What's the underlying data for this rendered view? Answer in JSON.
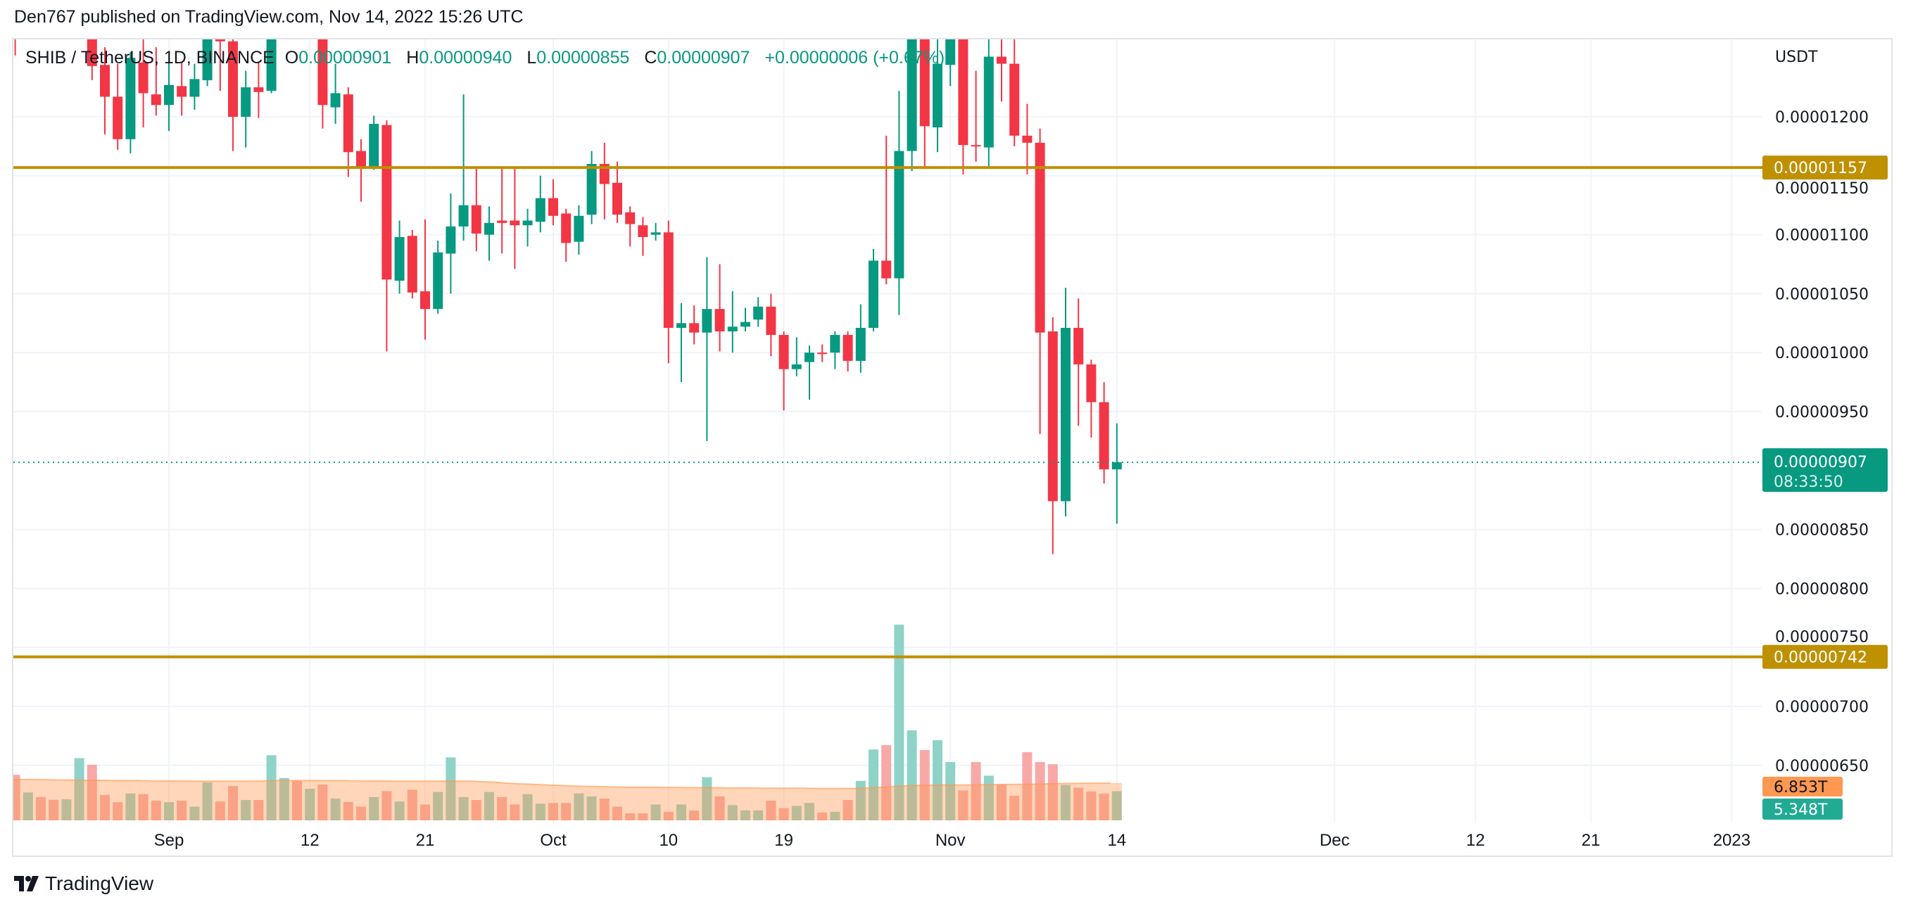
{
  "header": {
    "published": "Den767 published on TradingView.com, Nov 14, 2022 15:26 UTC"
  },
  "legend": {
    "symbol": "SHIB / TetherUS, 1D, BINANCE",
    "o_label": "O",
    "o": "0.00000901",
    "h_label": "H",
    "h": "0.00000940",
    "l_label": "L",
    "l": "0.00000855",
    "c_label": "C",
    "c": "0.00000907",
    "change": "+0.00000006 (+0.67%)"
  },
  "price_axis": {
    "currency": "USDT",
    "ticks": [
      "0.00001200",
      "0.00001150",
      "0.00001100",
      "0.00001050",
      "0.00001000",
      "0.00000950",
      "0.00000850",
      "0.00000800",
      "0.00000750",
      "0.00000700",
      "0.00000650"
    ]
  },
  "levels": [
    {
      "value": "0.00001157"
    },
    {
      "value": "0.00000742"
    }
  ],
  "last_price": {
    "value": "0.00000907",
    "countdown": "08:33:50"
  },
  "volume": {
    "ma_label": "6.853T",
    "last_label": "5.348T"
  },
  "time_axis": {
    "labels": [
      {
        "label": "Sep",
        "date": "2022-09-01"
      },
      {
        "label": "12",
        "date": "2022-09-12"
      },
      {
        "label": "21",
        "date": "2022-09-21"
      },
      {
        "label": "Oct",
        "date": "2022-10-01"
      },
      {
        "label": "10",
        "date": "2022-10-10"
      },
      {
        "label": "19",
        "date": "2022-10-19"
      },
      {
        "label": "Nov",
        "date": "2022-11-01"
      },
      {
        "label": "14",
        "date": "2022-11-14"
      },
      {
        "label": "Dec",
        "date": "2022-12-01"
      },
      {
        "label": "12",
        "date": "2022-12-12"
      },
      {
        "label": "21",
        "date": "2022-12-21"
      },
      {
        "label": "2023",
        "date": "2023-01-01"
      }
    ]
  },
  "footer": {
    "logo_text": "TradingView"
  },
  "colors": {
    "up": "#089981",
    "down": "#F23645",
    "level": "#BF9000",
    "volume_up": "#8fd3c8",
    "volume_down": "#f7a9a8",
    "volume_ma": "#ff9850",
    "grid": "#f0f3fa"
  },
  "chart_data": {
    "type": "candlestick",
    "title": "SHIB / TetherUS, 1D, BINANCE",
    "ylabel": "USDT",
    "ylim": [
      6.35e-06,
      1.265e-05
    ],
    "grid": true,
    "dates": [
      "2022-08-20",
      "2022-08-21",
      "2022-08-22",
      "2022-08-23",
      "2022-08-24",
      "2022-08-25",
      "2022-08-26",
      "2022-08-27",
      "2022-08-28",
      "2022-08-29",
      "2022-08-30",
      "2022-08-31",
      "2022-09-01",
      "2022-09-02",
      "2022-09-03",
      "2022-09-04",
      "2022-09-05",
      "2022-09-06",
      "2022-09-07",
      "2022-09-08",
      "2022-09-09",
      "2022-09-10",
      "2022-09-11",
      "2022-09-12",
      "2022-09-13",
      "2022-09-14",
      "2022-09-15",
      "2022-09-16",
      "2022-09-17",
      "2022-09-18",
      "2022-09-19",
      "2022-09-20",
      "2022-09-21",
      "2022-09-22",
      "2022-09-23",
      "2022-09-24",
      "2022-09-25",
      "2022-09-26",
      "2022-09-27",
      "2022-09-28",
      "2022-09-29",
      "2022-09-30",
      "2022-10-01",
      "2022-10-02",
      "2022-10-03",
      "2022-10-04",
      "2022-10-05",
      "2022-10-06",
      "2022-10-07",
      "2022-10-08",
      "2022-10-09",
      "2022-10-10",
      "2022-10-11",
      "2022-10-12",
      "2022-10-13",
      "2022-10-14",
      "2022-10-15",
      "2022-10-16",
      "2022-10-17",
      "2022-10-18",
      "2022-10-19",
      "2022-10-20",
      "2022-10-21",
      "2022-10-22",
      "2022-10-23",
      "2022-10-24",
      "2022-10-25",
      "2022-10-26",
      "2022-10-27",
      "2022-10-28",
      "2022-10-29",
      "2022-10-30",
      "2022-10-31",
      "2022-11-01",
      "2022-11-02",
      "2022-11-03",
      "2022-11-04",
      "2022-11-05",
      "2022-11-06",
      "2022-11-07",
      "2022-11-08",
      "2022-11-09",
      "2022-11-10",
      "2022-11-11",
      "2022-11-12",
      "2022-11-13",
      "2022-11-14"
    ],
    "ohlc": [
      [
        1.33e-05,
        1.345e-05,
        1.252e-05,
        1.28e-05
      ],
      [
        1.28e-05,
        1.32e-05,
        1.272e-05,
        1.3e-05
      ],
      [
        1.3e-05,
        1.33e-05,
        1.28e-05,
        1.295e-05
      ],
      [
        1.295e-05,
        1.31e-05,
        1.278e-05,
        1.285e-05
      ],
      [
        1.285e-05,
        1.315e-05,
        1.276e-05,
        1.3e-05
      ],
      [
        1.3e-05,
        1.33e-05,
        1.285e-05,
        1.315e-05
      ],
      [
        1.315e-05,
        1.32e-05,
        1.231e-05,
        1.243e-05
      ],
      [
        1.244e-05,
        1.259e-05,
        1.185e-05,
        1.217e-05
      ],
      [
        1.217e-05,
        1.245e-05,
        1.172e-05,
        1.181e-05
      ],
      [
        1.181e-05,
        1.255e-05,
        1.169e-05,
        1.25e-05
      ],
      [
        1.246e-05,
        1.268e-05,
        1.191e-05,
        1.22e-05
      ],
      [
        1.219e-05,
        1.259e-05,
        1.201e-05,
        1.21e-05
      ],
      [
        1.21e-05,
        1.246e-05,
        1.188e-05,
        1.227e-05
      ],
      [
        1.226e-05,
        1.246e-05,
        1.201e-05,
        1.217e-05
      ],
      [
        1.217e-05,
        1.245e-05,
        1.206e-05,
        1.232e-05
      ],
      [
        1.231e-05,
        1.285e-05,
        1.226e-05,
        1.275e-05
      ],
      [
        1.27e-05,
        1.29e-05,
        1.222e-05,
        1.264e-05
      ],
      [
        1.264e-05,
        1.268e-05,
        1.171e-05,
        1.2e-05
      ],
      [
        1.2e-05,
        1.239e-05,
        1.174e-05,
        1.225e-05
      ],
      [
        1.225e-05,
        1.247e-05,
        1.199e-05,
        1.221e-05
      ],
      [
        1.222e-05,
        1.285e-05,
        1.22e-05,
        1.275e-05
      ],
      [
        1.275e-05,
        1.3e-05,
        1.27e-05,
        1.29e-05
      ],
      [
        1.29e-05,
        1.31e-05,
        1.266e-05,
        1.275e-05
      ],
      [
        1.275e-05,
        1.3e-05,
        1.268e-05,
        1.29e-05
      ],
      [
        1.29e-05,
        1.3e-05,
        1.19e-05,
        1.21e-05
      ],
      [
        1.208e-05,
        1.245e-05,
        1.194e-05,
        1.22e-05
      ],
      [
        1.219e-05,
        1.225e-05,
        1.149e-05,
        1.17e-05
      ],
      [
        1.171e-05,
        1.181e-05,
        1.128e-05,
        1.157e-05
      ],
      [
        1.157e-05,
        1.201e-05,
        1.155e-05,
        1.194e-05
      ],
      [
        1.193e-05,
        1.197e-05,
        1.001e-05,
        1.062e-05
      ],
      [
        1.061e-05,
        1.112e-05,
        1.05e-05,
        1.098e-05
      ],
      [
        1.099e-05,
        1.104e-05,
        1.046e-05,
        1.051e-05
      ],
      [
        1.052e-05,
        1.113e-05,
        1.011e-05,
        1.037e-05
      ],
      [
        1.037e-05,
        1.095e-05,
        1.033e-05,
        1.085e-05
      ],
      [
        1.084e-05,
        1.135e-05,
        1.05e-05,
        1.107e-05
      ],
      [
        1.107e-05,
        1.219e-05,
        1.095e-05,
        1.125e-05
      ],
      [
        1.125e-05,
        1.156e-05,
        1.086e-05,
        1.101e-05
      ],
      [
        1.1e-05,
        1.124e-05,
        1.078e-05,
        1.11e-05
      ],
      [
        1.112e-05,
        1.156e-05,
        1.084e-05,
        1.11e-05
      ],
      [
        1.112e-05,
        1.156e-05,
        1.071e-05,
        1.108e-05
      ],
      [
        1.108e-05,
        1.122e-05,
        1.09e-05,
        1.112e-05
      ],
      [
        1.111e-05,
        1.15e-05,
        1.102e-05,
        1.131e-05
      ],
      [
        1.131e-05,
        1.147e-05,
        1.108e-05,
        1.116e-05
      ],
      [
        1.118e-05,
        1.122e-05,
        1.077e-05,
        1.093e-05
      ],
      [
        1.094e-05,
        1.125e-05,
        1.083e-05,
        1.116e-05
      ],
      [
        1.117e-05,
        1.171e-05,
        1.109e-05,
        1.16e-05
      ],
      [
        1.16e-05,
        1.178e-05,
        1.113e-05,
        1.143e-05
      ],
      [
        1.144e-05,
        1.162e-05,
        1.11e-05,
        1.117e-05
      ],
      [
        1.119e-05,
        1.124e-05,
        1.09e-05,
        1.109e-05
      ],
      [
        1.108e-05,
        1.115e-05,
        1.082e-05,
        1.098e-05
      ],
      [
        1.1e-05,
        1.11e-05,
        1.095e-05,
        1.102e-05
      ],
      [
        1.102e-05,
        1.112e-05,
        9.91e-06,
        1.021e-05
      ],
      [
        1.021e-05,
        1.042e-05,
        9.75e-06,
        1.025e-05
      ],
      [
        1.025e-05,
        1.04e-05,
        1.007e-05,
        1.017e-05
      ],
      [
        1.017e-05,
        1.081e-05,
        9.25e-06,
        1.037e-05
      ],
      [
        1.037e-05,
        1.075e-05,
        1.001e-05,
        1.018e-05
      ],
      [
        1.018e-05,
        1.052e-05,
        1e-05,
        1.022e-05
      ],
      [
        1.022e-05,
        1.038e-05,
        1.018e-05,
        1.026e-05
      ],
      [
        1.028e-05,
        1.047e-05,
        1.022e-05,
        1.039e-05
      ],
      [
        1.039e-05,
        1.05e-05,
        9.97e-06,
        1.015e-05
      ],
      [
        1.015e-05,
        1.018e-05,
        9.51e-06,
        9.86e-06
      ],
      [
        9.86e-06,
        1.013e-05,
        9.8e-06,
        9.9e-06
      ],
      [
        9.92e-06,
        1.006e-05,
        9.6e-06,
        1e-05
      ],
      [
        1e-05,
        1.007e-05,
        9.92e-06,
        9.99e-06
      ],
      [
        1e-05,
        1.018e-05,
        9.86e-06,
        1.015e-05
      ],
      [
        1.015e-05,
        1.018e-05,
        9.84e-06,
        9.93e-06
      ],
      [
        9.93e-06,
        1.041e-05,
        9.83e-06,
        1.021e-05
      ],
      [
        1.021e-05,
        1.088e-05,
        1.018e-05,
        1.078e-05
      ],
      [
        1.078e-05,
        1.184e-05,
        1.058e-05,
        1.063e-05
      ],
      [
        1.063e-05,
        1.222e-05,
        1.032e-05,
        1.171e-05
      ],
      [
        1.171e-05,
        1.29e-05,
        1.154e-05,
        1.27e-05
      ],
      [
        1.29e-05,
        1.3e-05,
        1.158e-05,
        1.192e-05
      ],
      [
        1.191e-05,
        1.28e-05,
        1.17e-05,
        1.245e-05
      ],
      [
        1.244e-05,
        1.31e-05,
        1.226e-05,
        1.3e-05
      ],
      [
        1.3e-05,
        1.32e-05,
        1.151e-05,
        1.176e-05
      ],
      [
        1.176e-05,
        1.239e-05,
        1.162e-05,
        1.175e-05
      ],
      [
        1.174e-05,
        1.29e-05,
        1.158e-05,
        1.251e-05
      ],
      [
        1.251e-05,
        1.267e-05,
        1.213e-05,
        1.245e-05
      ],
      [
        1.245e-05,
        1.267e-05,
        1.175e-05,
        1.184e-05
      ],
      [
        1.184e-05,
        1.211e-05,
        1.151e-05,
        1.178e-05
      ],
      [
        1.178e-05,
        1.19e-05,
        9.31e-06,
        1.017e-05
      ],
      [
        1.018e-05,
        1.03e-05,
        8.29e-06,
        8.74e-06
      ],
      [
        8.74e-06,
        1.055e-05,
        8.61e-06,
        1.021e-05
      ],
      [
        1.021e-05,
        1.046e-05,
        9.38e-06,
        9.9e-06
      ],
      [
        9.9e-06,
        9.94e-06,
        9.28e-06,
        9.58e-06
      ],
      [
        9.58e-06,
        9.75e-06,
        8.89e-06,
        9.01e-06
      ],
      [
        9.01e-06,
        9.4e-06,
        8.55e-06,
        9.07e-06
      ]
    ],
    "volume": [
      8360000000000.0,
      5120000000000.0,
      4270000000000.0,
      3770000000000.0,
      3860000000000.0,
      11410000000000.0,
      10200000000000.0,
      4670000000000.0,
      3330000000000.0,
      4940000000000.0,
      4810000000000.0,
      3600000000000.0,
      3330000000000.0,
      3600000000000.0,
      2520000000000.0,
      6970000000000.0,
      3460000000000.0,
      6290000000000.0,
      3730000000000.0,
      3730000000000.0,
      11950000000000.0,
      7770000000000.0,
      7240000000000.0,
      5800000000000.0,
      6560000000000.0,
      4000000000000.0,
      3370000000000.0,
      2520000000000.0,
      4270000000000.0,
      5350000000000.0,
      3460000000000.0,
      5620000000000.0,
      2920000000000.0,
      5210000000000.0,
      11550000000000.0,
      4270000000000.0,
      3730000000000.0,
      5210000000000.0,
      4270000000000.0,
      2920000000000.0,
      4810000000000.0,
      3060000000000.0,
      3190000000000.0,
      3190000000000.0,
      4940000000000.0,
      4400000000000.0,
      4000000000000.0,
      2520000000000.0,
      1300000000000.0,
      1300000000000.0,
      2920000000000.0,
      1570000000000.0,
      2920000000000.0,
      1800000000000.0,
      7910000000000.0,
      4400000000000.0,
      2790000000000.0,
      1840000000000.0,
      1840000000000.0,
      3600000000000.0,
      2250000000000.0,
      2650000000000.0,
      3190000000000.0,
      1440000000000.0,
      1570000000000.0,
      3730000000000.0,
      7240000000000.0,
      13000000000000.0,
      13800000000000.0,
      35900000000000.0,
      16500000000000.0,
      12900000000000.0,
      14700000000000.0,
      10700000000000.0,
      5500000000000.0,
      10700000000000.0,
      8200000000000.0,
      6600000000000.0,
      4500000000000.0,
      12500000000000.0,
      10700000000000.0,
      10300000000000.0,
      6500000000000.0,
      6000000000000.0,
      5300000000000.0,
      4900000000000.0,
      5348000000000.0
    ],
    "volume_ma": [
      7500000000000.0,
      7500000000000.0,
      7500000000000.0,
      7450000000000.0,
      7400000000000.0,
      7400000000000.0,
      7350000000000.0,
      7350000000000.0,
      7300000000000.0,
      7300000000000.0,
      7300000000000.0,
      7250000000000.0,
      7250000000000.0,
      7250000000000.0,
      7200000000000.0,
      7200000000000.0,
      7200000000000.0,
      7200000000000.0,
      7200000000000.0,
      7200000000000.0,
      7250000000000.0,
      7300000000000.0,
      7300000000000.0,
      7300000000000.0,
      7300000000000.0,
      7300000000000.0,
      7300000000000.0,
      7250000000000.0,
      7250000000000.0,
      7250000000000.0,
      7200000000000.0,
      7200000000000.0,
      7200000000000.0,
      7200000000000.0,
      7200000000000.0,
      7200000000000.0,
      7200000000000.0,
      7100000000000.0,
      7000000000000.0,
      6800000000000.0,
      6700000000000.0,
      6600000000000.0,
      6500000000000.0,
      6400000000000.0,
      6300000000000.0,
      6250000000000.0,
      6200000000000.0,
      6150000000000.0,
      6100000000000.0,
      6100000000000.0,
      6100000000000.0,
      6050000000000.0,
      6050000000000.0,
      6000000000000.0,
      6000000000000.0,
      6000000000000.0,
      5950000000000.0,
      5950000000000.0,
      5950000000000.0,
      5900000000000.0,
      5900000000000.0,
      5900000000000.0,
      5900000000000.0,
      5850000000000.0,
      5850000000000.0,
      5850000000000.0,
      5850000000000.0,
      5950000000000.0,
      6050000000000.0,
      6200000000000.0,
      6350000000000.0,
      6400000000000.0,
      6450000000000.0,
      6500000000000.0,
      6500000000000.0,
      6500000000000.0,
      6550000000000.0,
      6550000000000.0,
      6600000000000.0,
      6600000000000.0,
      6650000000000.0,
      6700000000000.0,
      6750000000000.0,
      6780000000000.0,
      6800000000000.0,
      6830000000000.0,
      6853000000000.0
    ]
  }
}
